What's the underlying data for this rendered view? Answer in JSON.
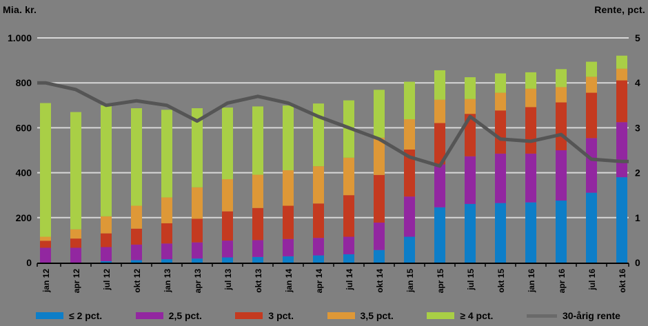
{
  "chart_data": {
    "type": "bar",
    "stacked": true,
    "title": "",
    "categories": [
      "jan 12",
      "apr 12",
      "jul 12",
      "okt 12",
      "jan 13",
      "apr 13",
      "jul 13",
      "okt 13",
      "jan 14",
      "apr 14",
      "jul 14",
      "okt 14",
      "jan 15",
      "apr 15",
      "jul 15",
      "okt 15",
      "jan 16",
      "apr 16",
      "jul 16",
      "okt 16"
    ],
    "series": [
      {
        "name": "≤ 2 pct.",
        "color": "#0D7EC8",
        "values": [
          0,
          0,
          6,
          11,
          15,
          18,
          23,
          25,
          28,
          32,
          37,
          56,
          115,
          246,
          261,
          265,
          268,
          276,
          311,
          380
        ]
      },
      {
        "name": "2,5 pct.",
        "color": "#9227A0",
        "values": [
          66,
          66,
          63,
          69,
          70,
          72,
          75,
          75,
          77,
          78,
          78,
          122,
          179,
          191,
          212,
          220,
          217,
          224,
          243,
          245
        ]
      },
      {
        "name": "3 pct.",
        "color": "#C43A20",
        "values": [
          31,
          41,
          61,
          71,
          90,
          105,
          130,
          143,
          148,
          153,
          185,
          212,
          209,
          184,
          189,
          192,
          207,
          213,
          202,
          186
        ]
      },
      {
        "name": "3,5 pct.",
        "color": "#DE9837",
        "values": [
          18,
          41,
          76,
          102,
          115,
          140,
          143,
          148,
          158,
          166,
          167,
          166,
          135,
          104,
          66,
          79,
          82,
          68,
          71,
          52
        ]
      },
      {
        "name": "≥ 4 pct.",
        "color": "#A9CF46",
        "values": [
          595,
          522,
          494,
          434,
          390,
          352,
          319,
          304,
          288,
          279,
          255,
          213,
          167,
          131,
          97,
          86,
          73,
          80,
          67,
          58
        ]
      }
    ],
    "line_series": {
      "name": "30-årig rente",
      "color": "#555555",
      "legend_swatch_color": "#6A6A6A",
      "axis": "right",
      "values": [
        4.0,
        3.85,
        3.5,
        3.6,
        3.5,
        3.15,
        3.55,
        3.7,
        3.55,
        3.25,
        3.0,
        2.75,
        2.35,
        2.15,
        3.25,
        2.75,
        2.7,
        2.85,
        2.3,
        2.25
      ]
    },
    "left_axis": {
      "title": "Mia. kr.",
      "min": 0,
      "max": 1000,
      "tick_labels": [
        "1.000",
        "800",
        "600",
        "400",
        "200",
        "0"
      ],
      "tick_values": [
        1000,
        800,
        600,
        400,
        200,
        0
      ]
    },
    "right_axis": {
      "title": "Rente, pct.",
      "min": 0,
      "max": 5,
      "tick_labels": [
        "5",
        "4",
        "3",
        "2",
        "1",
        "0"
      ],
      "tick_values": [
        5,
        4,
        3,
        2,
        1,
        0
      ]
    },
    "grid": true,
    "legend_position": "bottom",
    "colors": {
      "background": "#808080",
      "gridline": "#D8D8D8",
      "axis_line": "#000000",
      "text": "#000000"
    }
  }
}
